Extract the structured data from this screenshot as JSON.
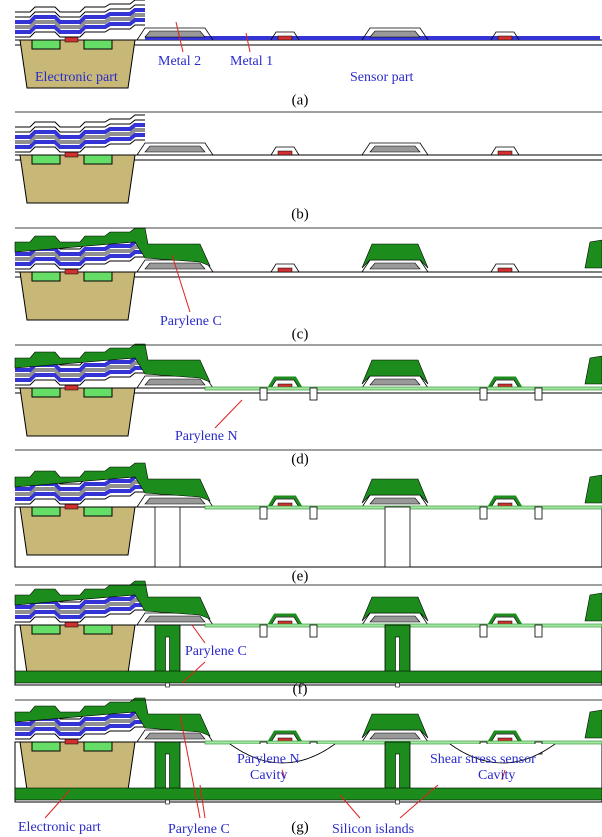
{
  "panels": [
    {
      "caption": "(a)",
      "labels": [
        "Metal 2",
        "Metal 1",
        "Electronic part",
        "Sensor part"
      ]
    },
    {
      "caption": "(b)",
      "labels": []
    },
    {
      "caption": "(c)",
      "labels": [
        "Parylene C"
      ]
    },
    {
      "caption": "(d)",
      "labels": [
        "Parylene N"
      ]
    },
    {
      "caption": "(e)",
      "labels": []
    },
    {
      "caption": "(f)",
      "labels": [
        "Parylene C"
      ]
    },
    {
      "caption": "(g)",
      "labels": [
        "Parylene N",
        "Shear stress sensor",
        "Cavity",
        "Cavity",
        "Electronic part",
        "Parylene C",
        "Silicon islands"
      ]
    }
  ]
}
